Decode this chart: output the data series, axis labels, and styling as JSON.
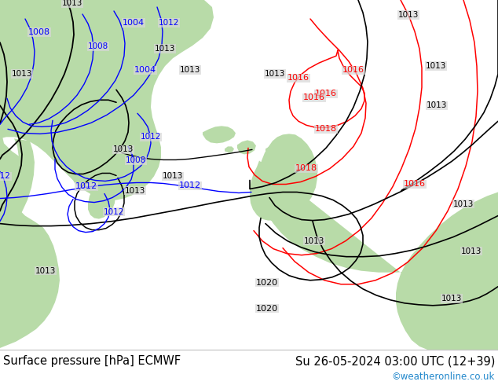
{
  "title_left": "Surface pressure [hPa] ECMWF",
  "title_right": "Su 26-05-2024 03:00 UTC (12+39)",
  "copyright": "©weatheronline.co.uk",
  "bg_color": "#d8d8d8",
  "map_bg_color": "#d8d8d8",
  "ocean_color": "#d8d8d8",
  "land_color": "#b8dba8",
  "text_color": "#000000",
  "copyright_color": "#2288cc",
  "bottom_bar_color": "#ffffff",
  "font_size_title": 10.5,
  "font_size_copyright": 8.5,
  "font_size_label": 8
}
